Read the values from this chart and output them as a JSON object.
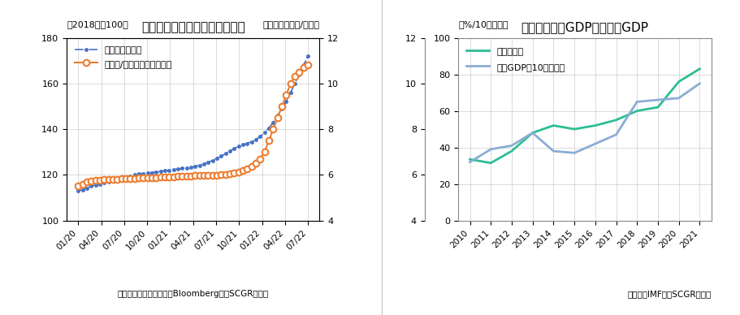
{
  "chart1": {
    "title": "セディと消費者物価指数の推移",
    "ylabel_left": "（2018年＝100）",
    "ylabel_right": "（ガーナセディ/ドル）",
    "xlabel_note": "（出所：ガーナ統計局、BloombergよりSCGR作成）",
    "ylim_left": [
      100,
      180
    ],
    "ylim_right": [
      4,
      12
    ],
    "yticks_left": [
      100,
      120,
      140,
      160,
      180
    ],
    "yticks_right": [
      4,
      6,
      8,
      10,
      12
    ],
    "xtick_labels": [
      "01/20",
      "04/20",
      "07/20",
      "10/20",
      "01/21",
      "04/21",
      "07/21",
      "10/21",
      "01/22",
      "04/22",
      "07/22"
    ],
    "cpi_color": "#4472C4",
    "fx_color": "#ED7D31",
    "legend1": "消費者物価指数",
    "legend2": "米ドル/ガーナセディ（右）",
    "cpi_values": [
      113,
      113.5,
      114.2,
      115,
      115.5,
      116,
      116.5,
      117,
      117.5,
      118,
      118.5,
      119,
      119.5,
      120,
      120.3,
      120.5,
      120.8,
      121,
      121.3,
      121.5,
      121.8,
      122,
      122.3,
      122.5,
      122.8,
      123,
      123.3,
      123.7,
      124.2,
      124.8,
      125.5,
      126.3,
      127.2,
      128.2,
      129.3,
      130.5,
      131.5,
      132.5,
      133.2,
      133.8,
      134.5,
      135.5,
      136.8,
      138.5,
      140.5,
      143,
      146,
      149,
      152,
      156,
      160,
      164,
      168,
      172
    ],
    "fx_values": [
      5.52,
      5.6,
      5.68,
      5.74,
      5.76,
      5.78,
      5.79,
      5.8,
      5.8,
      5.81,
      5.82,
      5.83,
      5.84,
      5.85,
      5.86,
      5.87,
      5.87,
      5.88,
      5.88,
      5.89,
      5.9,
      5.91,
      5.92,
      5.93,
      5.93,
      5.94,
      5.95,
      5.96,
      5.97,
      5.97,
      5.98,
      5.98,
      5.99,
      6.0,
      6.02,
      6.05,
      6.08,
      6.12,
      6.18,
      6.25,
      6.35,
      6.5,
      6.7,
      7.0,
      7.5,
      8.0,
      8.5,
      9.0,
      9.5,
      10.0,
      10.3,
      10.5,
      10.7,
      10.82
    ],
    "n_points": 54
  },
  "chart2": {
    "title": "政府総債務対GDP比と名目GDP",
    "ylabel_left": "（%/10億ドル）",
    "xlabel_note": "（出所：IMFよりSCGR作成）",
    "ylim_left": [
      0,
      100
    ],
    "ylim_right": [
      4,
      12
    ],
    "yticks_left": [
      0,
      20,
      40,
      60,
      80,
      100
    ],
    "yticks_right": [
      4,
      6,
      8,
      10,
      12
    ],
    "xtick_labels": [
      "2010",
      "2011",
      "2012",
      "2013",
      "2014",
      "2015",
      "2016",
      "2017",
      "2018",
      "2019",
      "2020",
      "2021"
    ],
    "debt_color": "#2DBD96",
    "gdp_color": "#8BADD4",
    "legend1": "政府総債務",
    "legend2": "名目GDP（10億ドル）",
    "debt_values": [
      33.5,
      31.5,
      38,
      48,
      52,
      50,
      52,
      55,
      60,
      62,
      76,
      83
    ],
    "gdp_values": [
      32,
      39,
      41,
      48,
      38,
      37,
      42,
      47,
      65,
      66,
      67,
      75
    ],
    "years": [
      2010,
      2011,
      2012,
      2013,
      2014,
      2015,
      2016,
      2017,
      2018,
      2019,
      2020,
      2021
    ]
  },
  "bg_color": "#FFFFFF"
}
